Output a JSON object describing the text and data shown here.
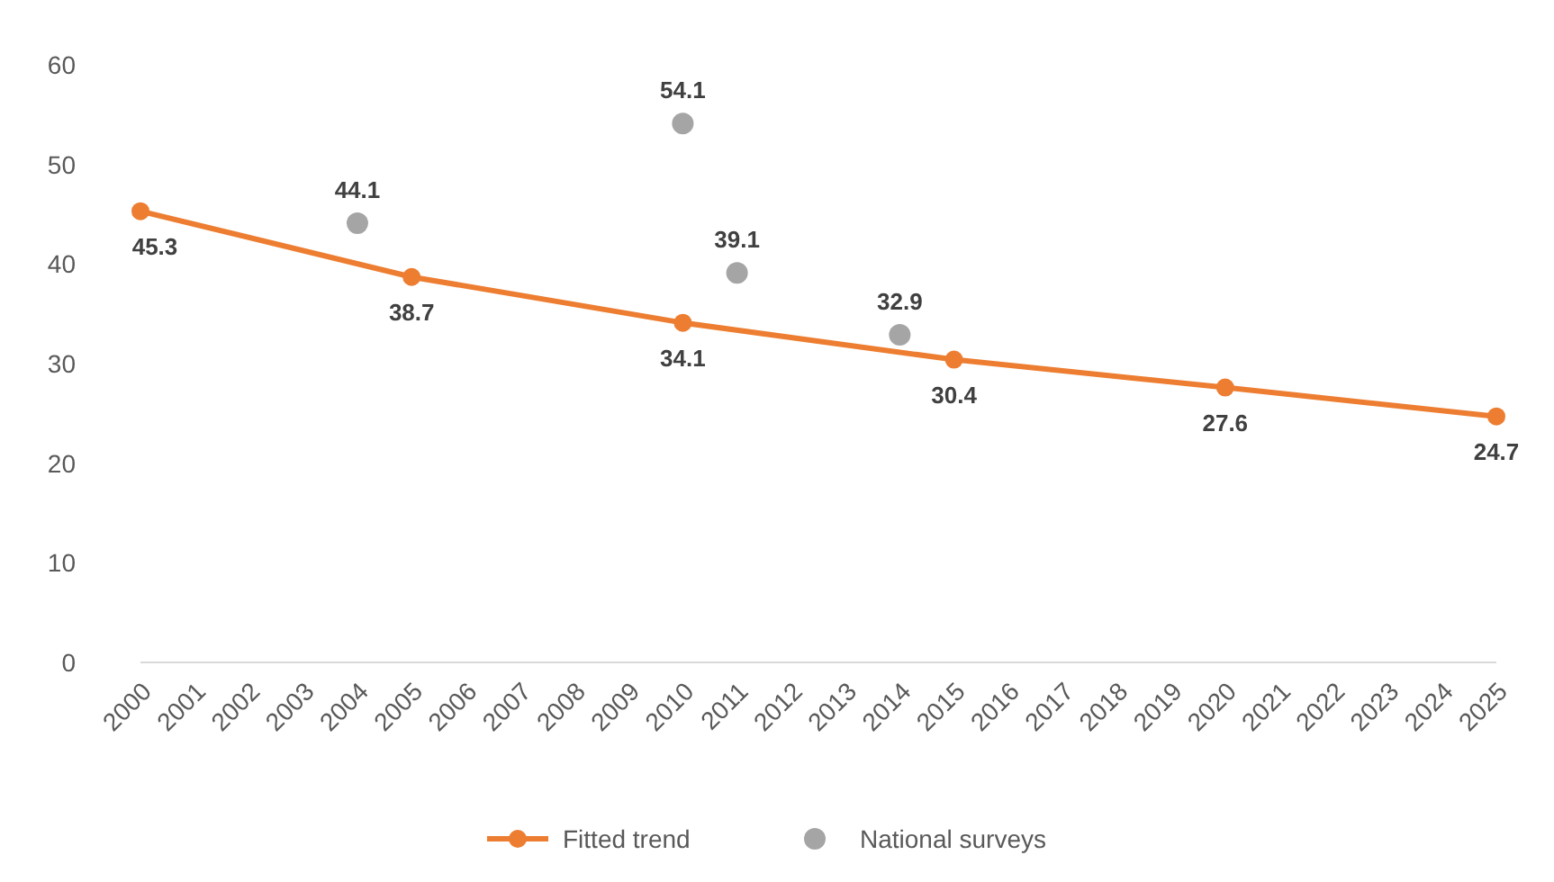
{
  "chart_data": {
    "type": "line",
    "xlim": [
      2000,
      2025
    ],
    "xticks": [
      2000,
      2001,
      2002,
      2003,
      2004,
      2005,
      2006,
      2007,
      2008,
      2009,
      2010,
      2011,
      2012,
      2013,
      2014,
      2015,
      2016,
      2017,
      2018,
      2019,
      2020,
      2021,
      2022,
      2023,
      2024,
      2025
    ],
    "ylim": [
      0,
      60
    ],
    "yticks": [
      0,
      10,
      20,
      30,
      40,
      50,
      60
    ],
    "grid": false,
    "legend": "bottom",
    "data_labels": true,
    "marker": "circle",
    "line_style": "solid",
    "series": [
      {
        "name": "Fitted trend",
        "type": "line",
        "color": "#ed7d31",
        "x": [
          2000,
          2005,
          2010,
          2015,
          2020,
          2025
        ],
        "values": [
          45.3,
          38.7,
          34.1,
          30.4,
          27.6,
          24.7
        ]
      },
      {
        "name": "National surveys",
        "type": "scatter",
        "color": "#a5a5a5",
        "x": [
          2004,
          2010,
          2011,
          2014
        ],
        "values": [
          44.1,
          54.1,
          39.1,
          32.9
        ]
      }
    ]
  }
}
